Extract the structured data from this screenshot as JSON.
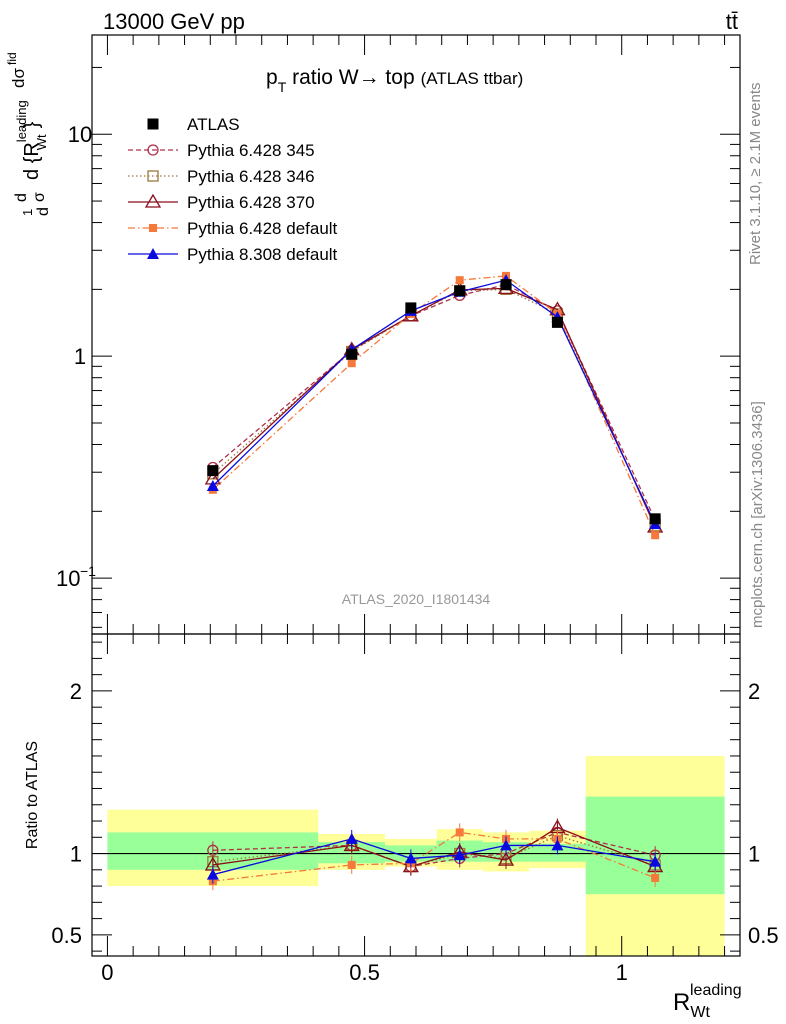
{
  "header": {
    "left": "13000 GeV pp",
    "right": "tt̄"
  },
  "side": {
    "rivet": "Rivet 3.1.10, ≥ 2.1M events",
    "mcplots": "mcplots.cern.ch [arXiv:1306.3436]"
  },
  "chart_data": [
    {
      "type": "line",
      "title": "p_T ratio W → top",
      "title_main": "p",
      "title_sub": "T",
      "title_rest": " ratio W→ top",
      "title_suffix": "(ATLAS ttbar)",
      "watermark": "ATLAS_2020_I1801434",
      "ylabel": "1/σ dσ/d{R_Wt^leading}",
      "ylabel_parts": {
        "a": "d",
        "b": "σ",
        "c": "1",
        "d": "d",
        "e": "dσ",
        "f": "fid",
        "g": "d {R",
        "h": "leading",
        "i": "Wt",
        "j": "}"
      },
      "yscale": "log",
      "ylim": [
        0.056,
        28
      ],
      "yticks": [
        {
          "value": 0.1,
          "label": "10",
          "exp": "−1"
        },
        {
          "value": 1,
          "label": "1"
        },
        {
          "value": 10,
          "label": "10"
        }
      ],
      "xlim": [
        -0.03,
        1.23
      ],
      "x": [
        0.205,
        0.475,
        0.59,
        0.685,
        0.775,
        0.875,
        1.065
      ],
      "series": [
        {
          "name": "ATLAS",
          "marker": "square-filled",
          "color": "#000000",
          "dash": "",
          "values": [
            0.305,
            1.02,
            1.65,
            1.97,
            2.1,
            1.42,
            0.185
          ]
        },
        {
          "name": "Pythia 6.428 345",
          "marker": "circle-open",
          "color": "#b0304a",
          "dash": "5,3",
          "values": [
            0.315,
            1.06,
            1.52,
            1.88,
            2.1,
            1.6,
            0.183
          ]
        },
        {
          "name": "Pythia 6.428 346",
          "marker": "square-open",
          "color": "#9c7a3c",
          "dash": "1.5,2.5",
          "values": [
            0.295,
            1.05,
            1.52,
            1.97,
            2.0,
            1.55,
            0.172
          ]
        },
        {
          "name": "Pythia 6.428 370",
          "marker": "triangle-open",
          "color": "#8b0f1a",
          "dash": "",
          "values": [
            0.28,
            1.07,
            1.52,
            1.99,
            2.02,
            1.62,
            0.17
          ]
        },
        {
          "name": "Pythia 6.428 default",
          "marker": "square-small-filled",
          "color": "#f5793a",
          "dash": "7,3,1.5,3",
          "values": [
            0.25,
            0.93,
            1.55,
            2.2,
            2.3,
            1.55,
            0.156
          ]
        },
        {
          "name": "Pythia 8.308 default",
          "marker": "triangle-filled",
          "color": "#0a0ae0",
          "dash": "",
          "values": [
            0.26,
            1.07,
            1.6,
            1.95,
            2.2,
            1.5,
            0.175
          ]
        }
      ]
    },
    {
      "type": "line",
      "ylabel": "Ratio to ATLAS",
      "xlabel": "R",
      "xlabel_sub": "Wt",
      "xlabel_sup": "leading",
      "xlim": [
        -0.03,
        1.23
      ],
      "ylim": [
        0.37,
        2.35
      ],
      "yticks": [
        {
          "value": 0.5,
          "label": "0.5"
        },
        {
          "value": 1,
          "label": "1"
        },
        {
          "value": 2,
          "label": "2"
        }
      ],
      "xticks": [
        {
          "value": 0,
          "label": "0"
        },
        {
          "value": 0.5,
          "label": "0.5"
        },
        {
          "value": 1,
          "label": "1"
        }
      ],
      "bands": [
        {
          "x0": 0.0,
          "x1": 0.41,
          "yellow": [
            0.8,
            1.27
          ],
          "green": [
            0.9,
            1.13
          ]
        },
        {
          "x0": 0.41,
          "x1": 0.54,
          "yellow": [
            0.9,
            1.12
          ],
          "green": [
            0.94,
            1.07
          ]
        },
        {
          "x0": 0.54,
          "x1": 0.64,
          "yellow": [
            0.92,
            1.09
          ],
          "green": [
            0.95,
            1.05
          ]
        },
        {
          "x0": 0.64,
          "x1": 0.73,
          "yellow": [
            0.9,
            1.15
          ],
          "green": [
            0.95,
            1.08
          ]
        },
        {
          "x0": 0.73,
          "x1": 0.82,
          "yellow": [
            0.89,
            1.13
          ],
          "green": [
            0.95,
            1.07
          ]
        },
        {
          "x0": 0.82,
          "x1": 0.93,
          "yellow": [
            0.91,
            1.14
          ],
          "green": [
            0.95,
            1.06
          ]
        },
        {
          "x0": 0.93,
          "x1": 1.2,
          "yellow": [
            0.37,
            1.6
          ],
          "green": [
            0.75,
            1.35
          ]
        }
      ],
      "series": [
        {
          "name": "Pythia 6.428 345",
          "values": [
            1.02,
            1.05,
            0.92,
            0.97,
            1.0,
            1.13,
            0.99
          ]
        },
        {
          "name": "Pythia 6.428 346",
          "values": [
            0.95,
            1.05,
            0.92,
            1.0,
            0.97,
            1.11,
            0.93
          ]
        },
        {
          "name": "Pythia 6.428 370",
          "values": [
            0.93,
            1.05,
            0.92,
            1.01,
            0.96,
            1.16,
            0.92
          ]
        },
        {
          "name": "Pythia 6.428 default",
          "values": [
            0.83,
            0.93,
            0.94,
            1.13,
            1.09,
            1.09,
            0.85
          ]
        },
        {
          "name": "Pythia 8.308 default",
          "values": [
            0.87,
            1.09,
            0.97,
            0.99,
            1.05,
            1.05,
            0.95
          ]
        }
      ]
    }
  ]
}
